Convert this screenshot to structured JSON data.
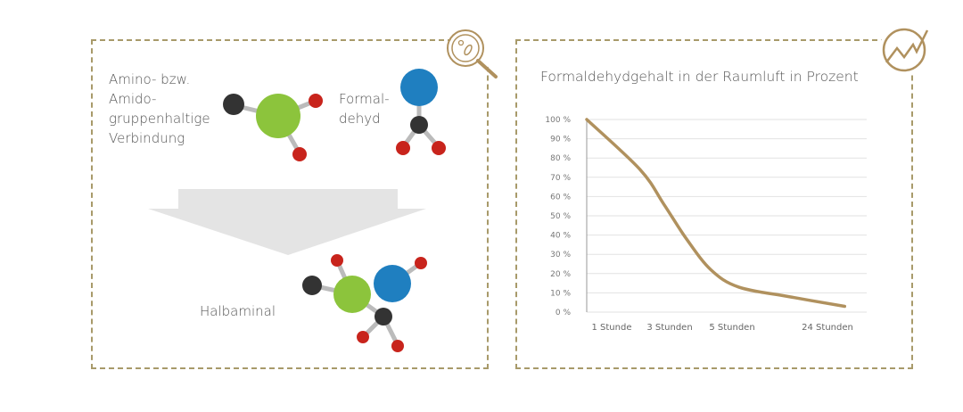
{
  "diagram": {
    "reactant1_label": [
      "Amino- bzw.",
      "Amido-",
      "gruppenhaltige",
      "Verbindung"
    ],
    "reactant2_label": [
      "Formal-",
      "dehyd"
    ],
    "product_label": "Halbaminal",
    "icon": "magnifier-bacteria-icon"
  },
  "chart_icon": "rising-chart-icon",
  "colors": {
    "accent": "#b0915e",
    "border": "#a89a6a",
    "green": "#8cc43c",
    "blue": "#1f7fc0",
    "red": "#c8241c",
    "black": "#333333"
  },
  "chart_data": {
    "type": "line",
    "title": "Formaldehydgehalt in der Raumluft in Prozent",
    "categories": [
      "1 Stunde",
      "3 Stunden",
      "5 Stunden",
      "24 Stunden"
    ],
    "yticks": [
      "0 %",
      "10 %",
      "20 %",
      "30 %",
      "40 %",
      "50 %",
      "60 %",
      "70 %",
      "80 %",
      "90 %",
      "100 %"
    ],
    "ylim": [
      0,
      100
    ],
    "grid": true,
    "series": [
      {
        "points": [
          [
            -0.43,
            100
          ],
          [
            0.49,
            74
          ],
          [
            0.9,
            56
          ],
          [
            1.27,
            38
          ],
          [
            1.66,
            22
          ],
          [
            2.07,
            13
          ],
          [
            2.6,
            8
          ],
          [
            3.18,
            3
          ]
        ]
      }
    ]
  }
}
